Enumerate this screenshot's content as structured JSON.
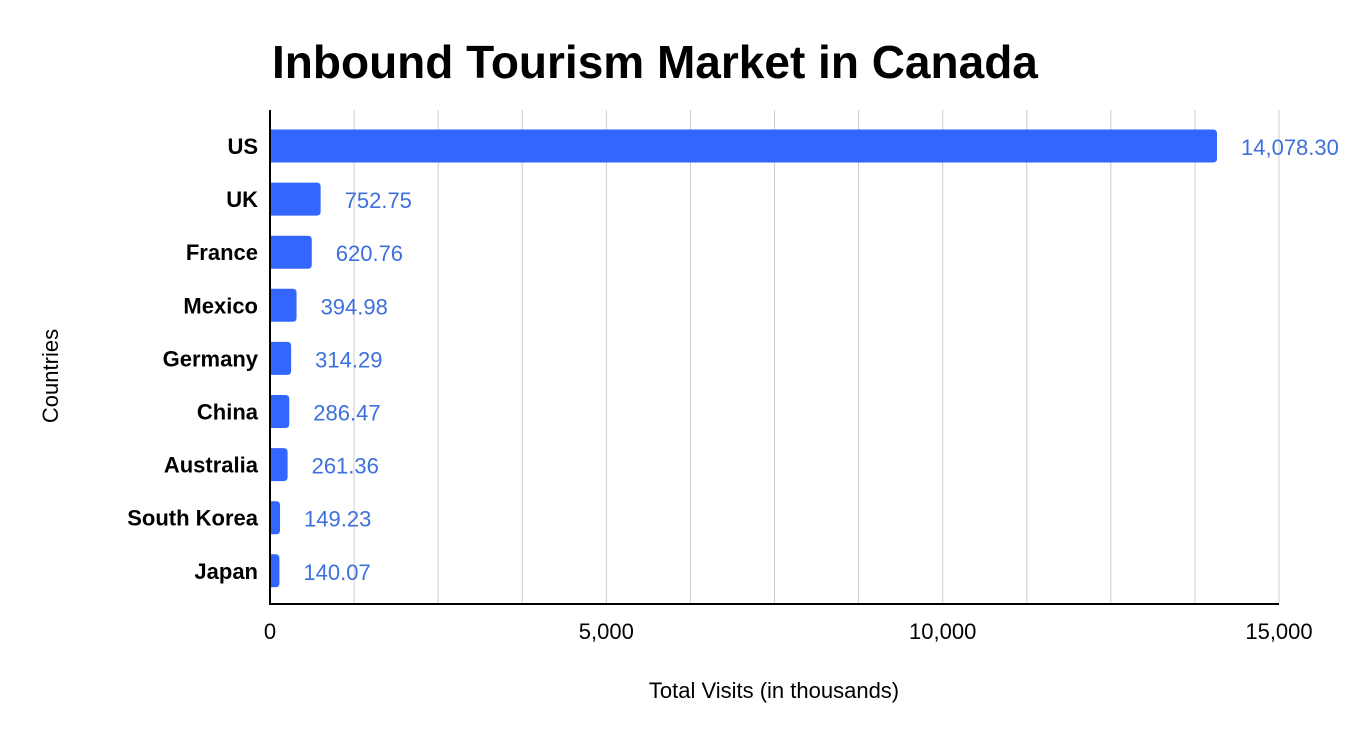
{
  "chart_data": {
    "type": "bar",
    "orientation": "horizontal",
    "title": "Inbound Tourism Market in Canada",
    "xlabel": "Total Visits (in thousands)",
    "ylabel": "Countries",
    "categories": [
      "US",
      "UK",
      "France",
      "Mexico",
      "Germany",
      "China",
      "Australia",
      "South Korea",
      "Japan"
    ],
    "values": [
      14078.3,
      752.75,
      620.76,
      394.98,
      314.29,
      286.47,
      261.36,
      149.23,
      140.07
    ],
    "data_labels": [
      "14,078.30",
      "752.75",
      "620.76",
      "394.98",
      "314.29",
      "286.47",
      "261.36",
      "149.23",
      "140.07"
    ],
    "xlim": [
      0,
      15000
    ],
    "x_ticks": [
      0,
      5000,
      10000,
      15000
    ],
    "x_tick_labels": [
      "0",
      "5,000",
      "10,000",
      "15,000"
    ],
    "minor_gridlines_per_major": 3,
    "grid": true,
    "legend": "none",
    "colors": {
      "bar": "#3366ff",
      "data_label": "#3d6fdd",
      "gridline": "#cccccc",
      "axis": "#000000"
    }
  }
}
